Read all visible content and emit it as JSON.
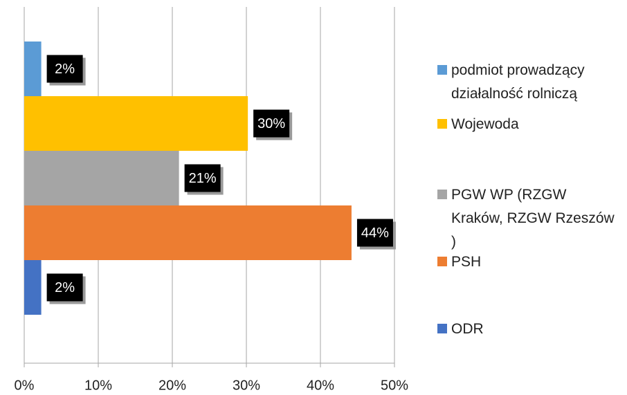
{
  "chart_data": {
    "type": "bar",
    "orientation": "horizontal",
    "categories": [
      null
    ],
    "series": [
      {
        "name": "podmiot prowadzący działalność rolniczą",
        "color": "#5b9bd5",
        "values": [
          2.3
        ],
        "value_labels": [
          "2%"
        ]
      },
      {
        "name": "Wojewoda",
        "color": "#ffc000",
        "values": [
          30.2
        ],
        "value_labels": [
          "30%"
        ]
      },
      {
        "name": "PGW WP (RZGW Kraków, RZGW Rzeszów )",
        "color": "#a5a5a5",
        "values": [
          20.9
        ],
        "value_labels": [
          "21%"
        ]
      },
      {
        "name": "PSH",
        "color": "#ed7d31",
        "values": [
          44.2
        ],
        "value_labels": [
          "44%"
        ]
      },
      {
        "name": "ODR",
        "color": "#4472c4",
        "values": [
          2.3
        ],
        "value_labels": [
          "2%"
        ]
      }
    ],
    "xlim": [
      0,
      50
    ],
    "xticks": [
      {
        "value": 0,
        "label": "0%"
      },
      {
        "value": 10,
        "label": "10%"
      },
      {
        "value": 20,
        "label": "20%"
      },
      {
        "value": 30,
        "label": "30%"
      },
      {
        "value": 40,
        "label": "40%"
      },
      {
        "value": 50,
        "label": "50%"
      }
    ],
    "grid": true,
    "legend": "right"
  }
}
